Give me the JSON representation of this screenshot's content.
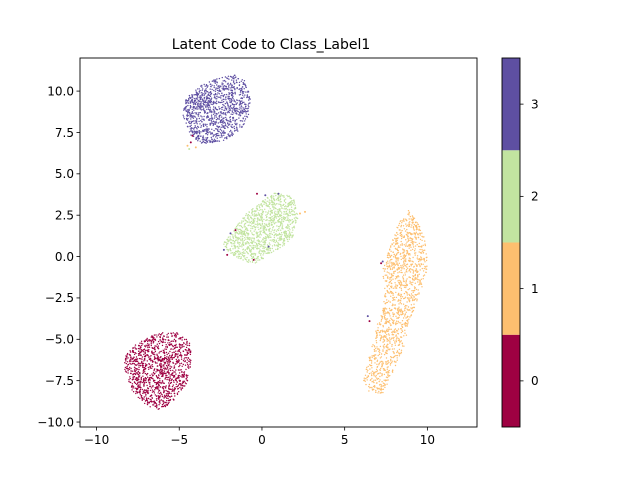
{
  "chart_data": {
    "type": "scatter",
    "title": "Latent Code to Class_Label1",
    "xlabel": "",
    "ylabel": "",
    "xlim": [
      -11,
      13
    ],
    "ylim": [
      -10.3,
      12
    ],
    "x_ticks": [
      -10,
      -5,
      0,
      5,
      10
    ],
    "x_tick_labels": [
      "−10",
      "−5",
      "0",
      "5",
      "10"
    ],
    "y_ticks": [
      -10,
      -7.5,
      -5,
      -2.5,
      0,
      2.5,
      5,
      7.5,
      10
    ],
    "y_tick_labels": [
      "−10.0",
      "−7.5",
      "−5.0",
      "−2.5",
      "0.0",
      "2.5",
      "5.0",
      "7.5",
      "10.0"
    ],
    "grid": false,
    "marker_size_px": 1.1,
    "clusters": [
      {
        "label": 0,
        "color": "#9e0142",
        "polygon": [
          [
            -5.1,
            -4.6
          ],
          [
            -4.3,
            -5.2
          ],
          [
            -4.3,
            -6.5
          ],
          [
            -4.5,
            -7.6
          ],
          [
            -5.4,
            -8.8
          ],
          [
            -6.2,
            -9.3
          ],
          [
            -7.0,
            -9.0
          ],
          [
            -7.8,
            -8.2
          ],
          [
            -8.3,
            -7.0
          ],
          [
            -8.3,
            -6.0
          ],
          [
            -7.5,
            -5.2
          ],
          [
            -6.3,
            -4.6
          ]
        ],
        "count": 1200
      },
      {
        "label": 1,
        "color": "#fdbf6f",
        "polygon": [
          [
            8.8,
            2.9
          ],
          [
            9.6,
            1.8
          ],
          [
            10.0,
            0.6
          ],
          [
            10.0,
            -1.0
          ],
          [
            9.4,
            -2.6
          ],
          [
            8.9,
            -4.0
          ],
          [
            8.6,
            -5.4
          ],
          [
            8.0,
            -6.8
          ],
          [
            7.3,
            -8.3
          ],
          [
            6.5,
            -8.2
          ],
          [
            6.1,
            -7.5
          ],
          [
            6.6,
            -5.6
          ],
          [
            7.0,
            -4.0
          ],
          [
            7.4,
            -2.6
          ],
          [
            7.3,
            -0.8
          ],
          [
            7.8,
            0.8
          ],
          [
            8.3,
            2.1
          ]
        ],
        "count": 1300
      },
      {
        "label": 2,
        "color": "#c2e4a0",
        "polygon": [
          [
            -1.8,
            1.4
          ],
          [
            -1.2,
            2.4
          ],
          [
            -0.2,
            3.2
          ],
          [
            0.8,
            3.9
          ],
          [
            1.9,
            3.6
          ],
          [
            2.2,
            2.4
          ],
          [
            1.8,
            1.0
          ],
          [
            0.6,
            0.2
          ],
          [
            -0.4,
            -0.4
          ],
          [
            -1.2,
            -0.3
          ],
          [
            -2.0,
            0.2
          ],
          [
            -2.4,
            0.8
          ]
        ],
        "count": 1100
      },
      {
        "label": 3,
        "color": "#5e4fa2",
        "polygon": [
          [
            -2.6,
            10.8
          ],
          [
            -1.6,
            11.0
          ],
          [
            -1.0,
            10.6
          ],
          [
            -0.7,
            9.6
          ],
          [
            -0.8,
            8.4
          ],
          [
            -1.4,
            7.5
          ],
          [
            -2.3,
            7.0
          ],
          [
            -3.6,
            6.8
          ],
          [
            -4.3,
            7.3
          ],
          [
            -4.8,
            8.4
          ],
          [
            -4.6,
            9.6
          ],
          [
            -3.6,
            10.4
          ]
        ],
        "count": 1100
      }
    ],
    "stray_points": [
      {
        "x": -4.5,
        "y": 6.7,
        "color": "#fdbf6f"
      },
      {
        "x": -4.3,
        "y": 6.9,
        "color": "#9e0142"
      },
      {
        "x": -4.4,
        "y": 6.5,
        "color": "#c2e4a0"
      },
      {
        "x": -4.0,
        "y": 6.6,
        "color": "#fdbf6f"
      },
      {
        "x": -4.2,
        "y": 7.3,
        "color": "#9e0142"
      },
      {
        "x": -2.1,
        "y": 0.1,
        "color": "#9e0142"
      },
      {
        "x": -2.3,
        "y": 0.4,
        "color": "#5e4fa2"
      },
      {
        "x": -1.9,
        "y": 1.4,
        "color": "#5e4fa2"
      },
      {
        "x": -1.6,
        "y": 1.6,
        "color": "#9e0142"
      },
      {
        "x": -0.5,
        "y": -0.2,
        "color": "#9e0142"
      },
      {
        "x": -0.3,
        "y": 3.8,
        "color": "#9e0142"
      },
      {
        "x": 0.2,
        "y": 3.7,
        "color": "#5e4fa2"
      },
      {
        "x": 1.0,
        "y": 3.8,
        "color": "#5e4fa2"
      },
      {
        "x": 0.4,
        "y": 0.6,
        "color": "#5e4fa2"
      },
      {
        "x": 2.3,
        "y": 2.6,
        "color": "#fdbf6f"
      },
      {
        "x": 2.6,
        "y": 2.7,
        "color": "#fdbf6f"
      },
      {
        "x": 7.3,
        "y": -0.3,
        "color": "#5e4fa2"
      },
      {
        "x": 7.2,
        "y": -0.4,
        "color": "#9e0142"
      },
      {
        "x": 6.5,
        "y": -3.9,
        "color": "#9e0142"
      },
      {
        "x": 6.4,
        "y": -3.6,
        "color": "#5e4fa2"
      }
    ],
    "colorbar": {
      "ticks": [
        0,
        1,
        2,
        3
      ],
      "tick_labels": [
        "0",
        "1",
        "2",
        "3"
      ],
      "range": [
        -0.5,
        3.5
      ],
      "colors": [
        "#9e0142",
        "#fdbf6f",
        "#c2e4a0",
        "#5e4fa2"
      ]
    }
  }
}
